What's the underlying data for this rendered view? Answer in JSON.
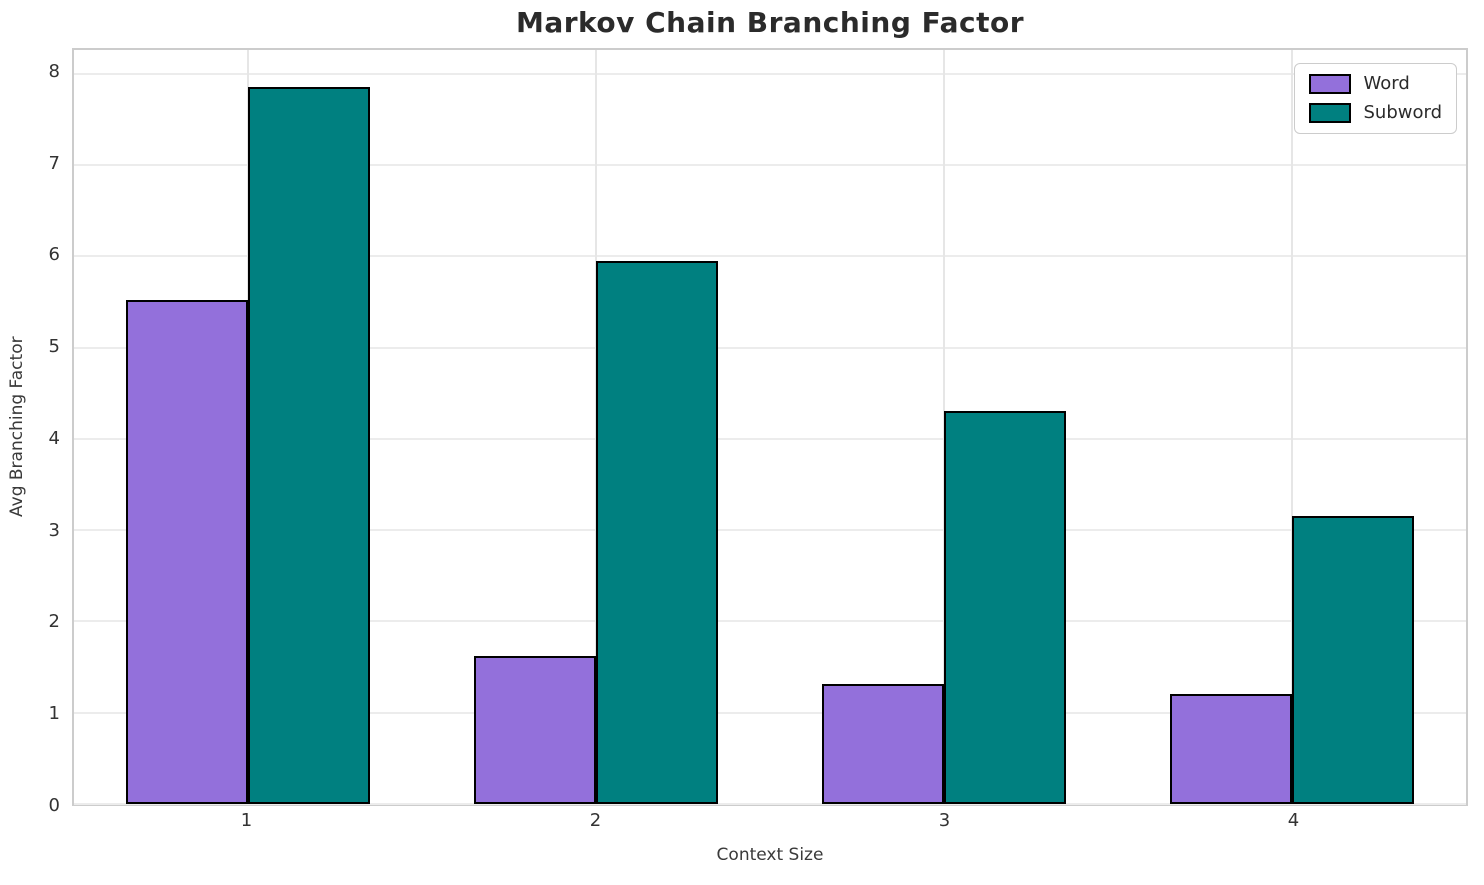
{
  "chart_data": {
    "type": "bar",
    "title": "Markov Chain Branching Factor",
    "xlabel": "Context Size",
    "ylabel": "Avg Branching Factor",
    "categories": [
      "1",
      "2",
      "3",
      "4"
    ],
    "series": [
      {
        "name": "Word",
        "color": "#9370DB",
        "values": [
          5.52,
          1.62,
          1.31,
          1.21
        ]
      },
      {
        "name": "Subword",
        "color": "#008080",
        "values": [
          7.86,
          5.95,
          4.31,
          3.15
        ]
      }
    ],
    "yticks": [
      0,
      1,
      2,
      3,
      4,
      5,
      6,
      7,
      8
    ],
    "ylim": [
      0,
      8.26
    ],
    "bar_group_width": 0.7,
    "bar_edge_color": "#000000",
    "grid": true,
    "legend_position": "upper right"
  },
  "colors": {
    "grid_horizontal": "#ececec",
    "grid_vertical": "#e6e6e6",
    "spine": "#cccccc",
    "text": "#3a3a3a",
    "title": "#2b2b2b",
    "background": "#ffffff"
  }
}
